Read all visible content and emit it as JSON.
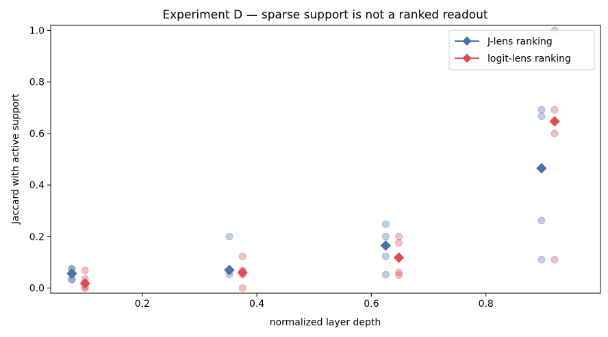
{
  "chart_data": {
    "type": "scatter",
    "title": "Experiment D — sparse support is not a ranked readout",
    "xlabel": "normalized layer depth",
    "ylabel": "Jaccard with active support",
    "xlim": [
      0.04,
      1.0
    ],
    "ylim": [
      -0.02,
      1.02
    ],
    "xticks": [
      0.2,
      0.4,
      0.6,
      0.8
    ],
    "xtick_labels": [
      "0.2",
      "0.4",
      "0.6",
      "0.8"
    ],
    "yticks": [
      0.0,
      0.2,
      0.4,
      0.6,
      0.8,
      1.0
    ],
    "ytick_labels": [
      "0.0",
      "0.2",
      "0.4",
      "0.6",
      "0.8",
      "1.0"
    ],
    "grid": false,
    "legend": {
      "position": "top-right"
    },
    "series": [
      {
        "name": "J-lens ranking",
        "color": "#4a72a8",
        "marker": "diamond",
        "mean_points": [
          {
            "x": 0.077,
            "y": 0.056
          },
          {
            "x": 0.352,
            "y": 0.07
          },
          {
            "x": 0.625,
            "y": 0.165
          },
          {
            "x": 0.897,
            "y": 0.465
          }
        ],
        "sample_points": [
          {
            "x": 0.077,
            "y": 0.075
          },
          {
            "x": 0.077,
            "y": 0.072
          },
          {
            "x": 0.077,
            "y": 0.035
          },
          {
            "x": 0.077,
            "y": 0.032
          },
          {
            "x": 0.352,
            "y": 0.2
          },
          {
            "x": 0.352,
            "y": 0.067
          },
          {
            "x": 0.352,
            "y": 0.052
          },
          {
            "x": 0.625,
            "y": 0.248
          },
          {
            "x": 0.625,
            "y": 0.2
          },
          {
            "x": 0.625,
            "y": 0.123
          },
          {
            "x": 0.625,
            "y": 0.052
          },
          {
            "x": 0.897,
            "y": 0.692
          },
          {
            "x": 0.897,
            "y": 0.667
          },
          {
            "x": 0.897,
            "y": 0.262
          },
          {
            "x": 0.897,
            "y": 0.11
          }
        ]
      },
      {
        "name": "logit-lens ranking",
        "color": "#de4e4e",
        "marker": "diamond",
        "mean_points": [
          {
            "x": 0.1,
            "y": 0.018
          },
          {
            "x": 0.375,
            "y": 0.06
          },
          {
            "x": 0.648,
            "y": 0.118
          },
          {
            "x": 0.92,
            "y": 0.647
          }
        ],
        "sample_points": [
          {
            "x": 0.1,
            "y": 0.068
          },
          {
            "x": 0.1,
            "y": 0.035
          },
          {
            "x": 0.1,
            "y": 0.018
          },
          {
            "x": 0.1,
            "y": 0.005
          },
          {
            "x": 0.1,
            "y": 0.0
          },
          {
            "x": 0.375,
            "y": 0.123
          },
          {
            "x": 0.375,
            "y": 0.068
          },
          {
            "x": 0.375,
            "y": 0.052
          },
          {
            "x": 0.375,
            "y": 0.0
          },
          {
            "x": 0.648,
            "y": 0.2
          },
          {
            "x": 0.648,
            "y": 0.175
          },
          {
            "x": 0.648,
            "y": 0.06
          },
          {
            "x": 0.648,
            "y": 0.05
          },
          {
            "x": 0.92,
            "y": 1.0
          },
          {
            "x": 0.92,
            "y": 0.692
          },
          {
            "x": 0.92,
            "y": 0.6
          },
          {
            "x": 0.92,
            "y": 0.11
          }
        ]
      }
    ]
  }
}
